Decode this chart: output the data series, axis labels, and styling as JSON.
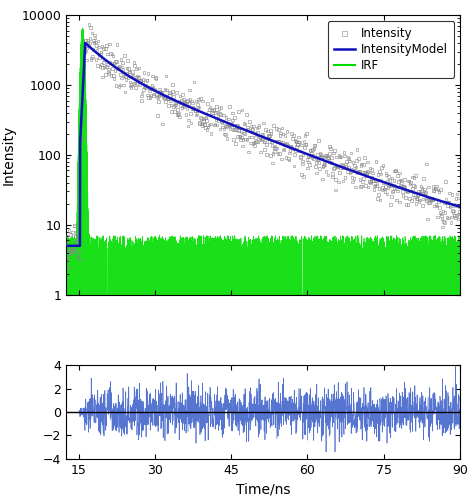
{
  "title": "",
  "xlabel": "Time/ns",
  "ylabel": "Intensity",
  "xlim": [
    12.5,
    90
  ],
  "ylim_log": [
    1,
    10000
  ],
  "ylim_residual": [
    -4,
    4
  ],
  "xticks": [
    15,
    30,
    45,
    60,
    75,
    90
  ],
  "yticks_log": [
    1,
    10,
    100,
    1000,
    10000
  ],
  "yticks_residual": [
    -4,
    -2,
    0,
    2,
    4
  ],
  "legend_labels": [
    "Intensity",
    "IntensityModel",
    "IRF"
  ],
  "intensity_color": "#888888",
  "model_color": "#1111BB",
  "irf_color": "#00DD00",
  "residual_color": "#4466CC",
  "peak_time": 16.2,
  "peak_value": 4000,
  "decay_tau1": 4.5,
  "decay_tau2": 15.0,
  "background": 5.0
}
